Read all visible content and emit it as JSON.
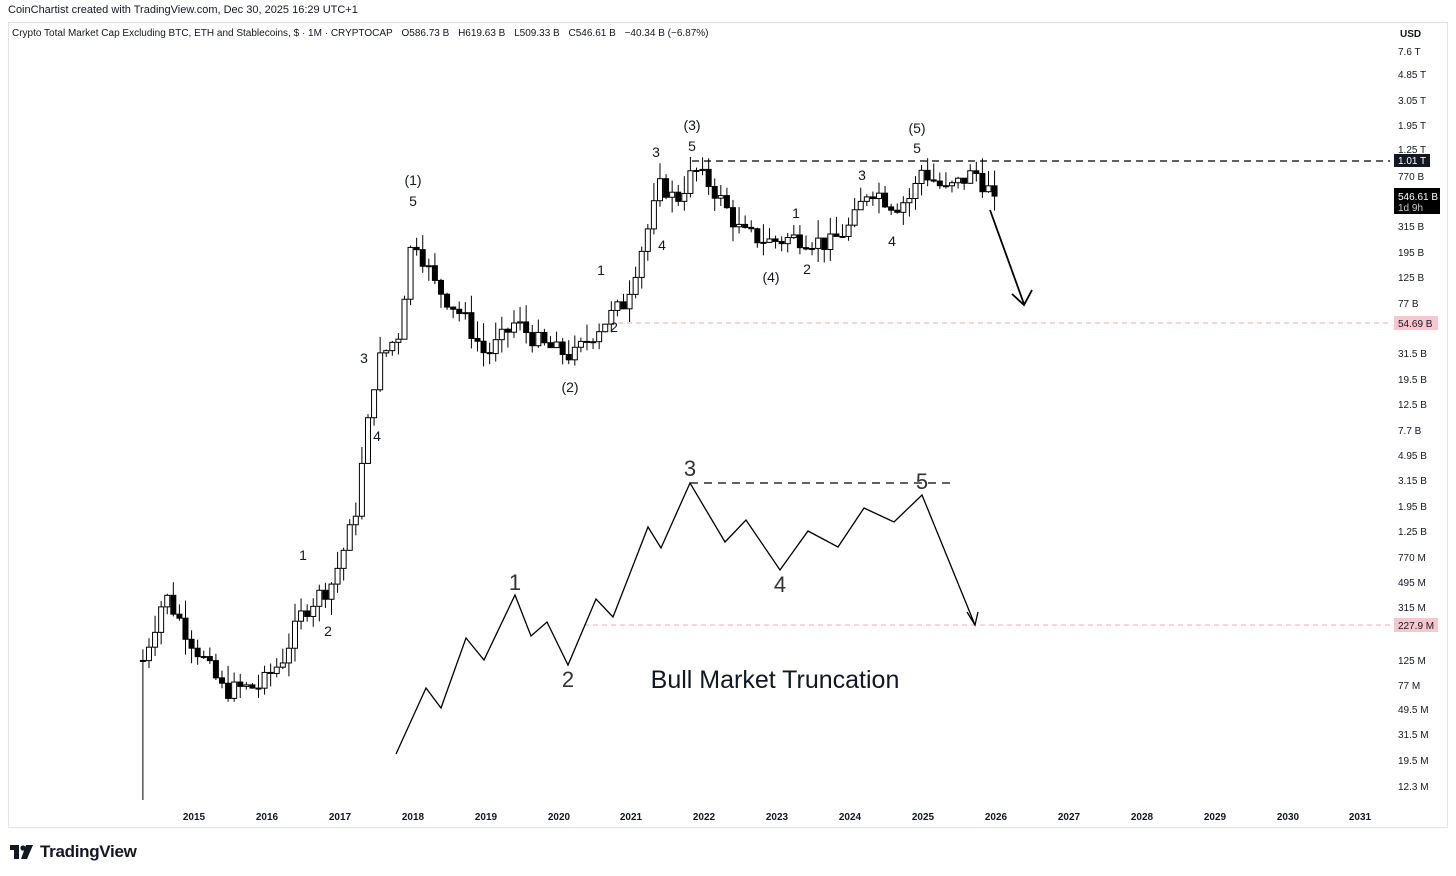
{
  "header": {
    "credit": "CoinChartist created with TradingView.com, Dec 30, 2025 16:29 UTC+1",
    "symbol": "Crypto Total Market Cap Excluding BTC, ETH and Stablecoins, $ · 1M · CRYPTOCAP",
    "open": "O586.73 B",
    "high": "H619.63 B",
    "low": "L509.33 B",
    "close": "C546.61 B",
    "change": "−40.34 B (−6.87%)"
  },
  "price_axis": {
    "currency": "USD",
    "labels": [
      "7.6 T",
      "4.85 T",
      "3.05 T",
      "1.95 T",
      "1.25 T",
      "770 B",
      "315 B",
      "195 B",
      "125 B",
      "77 B",
      "31.5 B",
      "19.5 B",
      "12.5 B",
      "7.7 B",
      "4.95 B",
      "3.15 B",
      "1.95 B",
      "1.25 B",
      "770 M",
      "495 M",
      "315 M",
      "125 M",
      "77 M",
      "49.5 M",
      "31.5 M",
      "19.5 M",
      "12.3 M"
    ],
    "badges": {
      "resistance": "1.01 T",
      "last_price": "546.61 B",
      "countdown": "1d 9h",
      "target_upper": "54.69 B",
      "target_lower": "227.9 M"
    }
  },
  "time_axis": {
    "labels": [
      "2015",
      "2016",
      "2017",
      "2018",
      "2019",
      "2020",
      "2021",
      "2022",
      "2023",
      "2024",
      "2025",
      "2026",
      "2027",
      "2028",
      "2029",
      "2030",
      "2031"
    ]
  },
  "brand": {
    "name": "TradingView"
  },
  "colors": {
    "candle": "#000000",
    "dashed_line": "#000000",
    "target_line": "#f0a8b4",
    "target_badge": "#f7c6ce"
  },
  "chart_data": {
    "type": "candlestick",
    "title": "Crypto Total Market Cap Excluding BTC, ETH and Stablecoins",
    "interval": "1M",
    "scale": "log",
    "ylim": [
      "12.3 M",
      "7.6 T"
    ],
    "xlim": [
      "2014",
      "2031"
    ],
    "last_candle": {
      "open": "586.73 B",
      "high": "619.63 B",
      "low": "509.33 B",
      "close": "546.61 B",
      "change": "−40.34 B (−6.87%)"
    },
    "levels": [
      {
        "value": "1.01 T",
        "style": "dashed"
      },
      {
        "value": "54.69 B",
        "style": "dashed-pink"
      },
      {
        "value": "227.9 M",
        "style": "dashed-pink"
      }
    ],
    "wave_labels": [
      "(1)",
      "5",
      "3",
      "4",
      "1",
      "2",
      "(2)",
      "2",
      "1",
      "4",
      "3",
      "(3)",
      "5",
      "(4)",
      "1",
      "2",
      "3",
      "4",
      "(5)",
      "5"
    ],
    "schematic": {
      "title": "Bull Market Truncation",
      "labels": [
        "1",
        "2",
        "3",
        "4",
        "5"
      ]
    }
  }
}
